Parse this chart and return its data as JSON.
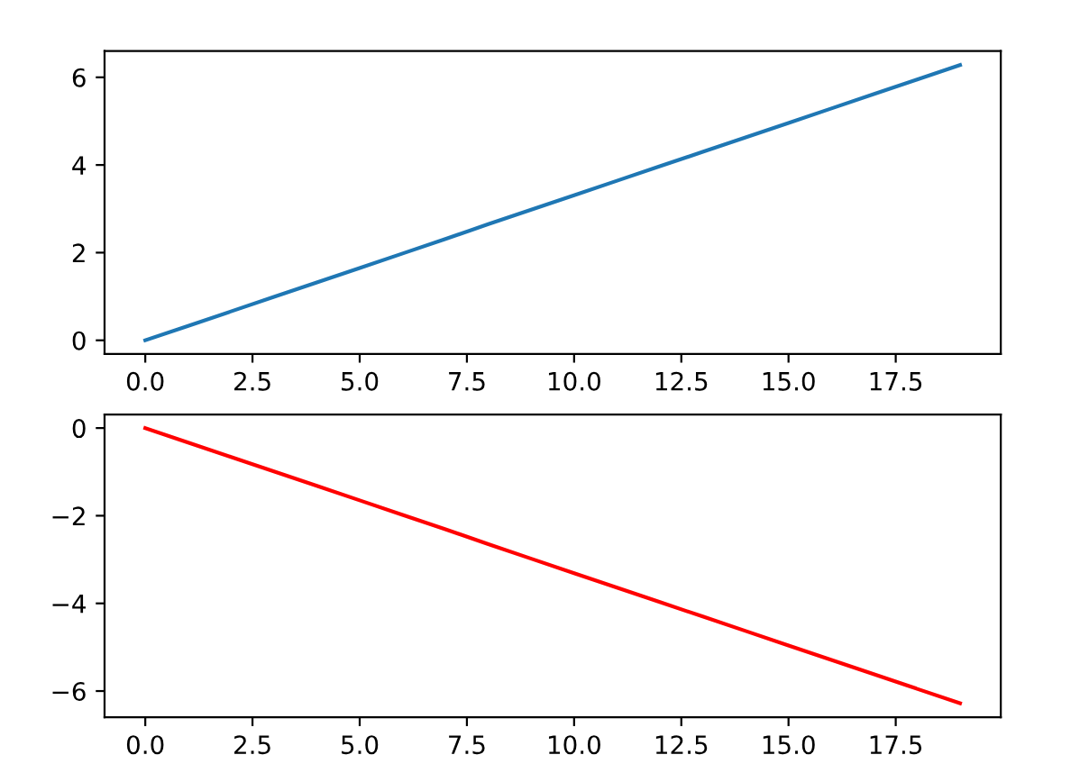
{
  "chart_data": [
    {
      "type": "line",
      "x": [
        0,
        1,
        2,
        3,
        4,
        5,
        6,
        7,
        8,
        9,
        10,
        11,
        12,
        13,
        14,
        15,
        16,
        17,
        18,
        19
      ],
      "series": [
        {
          "color": "#1f77b4",
          "values": [
            0,
            0.33,
            0.66,
            0.99,
            1.32,
            1.65,
            1.98,
            2.31,
            2.65,
            2.98,
            3.31,
            3.64,
            3.97,
            4.3,
            4.63,
            4.96,
            5.29,
            5.62,
            5.95,
            6.28
          ]
        }
      ],
      "xlim": [
        -0.95,
        19.95
      ],
      "ylim": [
        -0.31,
        6.6
      ],
      "xticks": [
        {
          "value": 0,
          "label": "0.0"
        },
        2.5,
        {
          "value": 5,
          "label": "5.0"
        },
        7.5,
        {
          "value": 10,
          "label": "10.0"
        },
        12.5,
        {
          "value": 15,
          "label": "15.0"
        },
        17.5
      ],
      "yticks": [
        0,
        2,
        4,
        6
      ],
      "grid": false,
      "legend": false
    },
    {
      "type": "line",
      "x": [
        0,
        1,
        2,
        3,
        4,
        5,
        6,
        7,
        8,
        9,
        10,
        11,
        12,
        13,
        14,
        15,
        16,
        17,
        18,
        19
      ],
      "series": [
        {
          "color": "#ff0000",
          "values": [
            0,
            -0.33,
            -0.66,
            -0.99,
            -1.32,
            -1.65,
            -1.98,
            -2.31,
            -2.65,
            -2.98,
            -3.31,
            -3.64,
            -3.97,
            -4.3,
            -4.63,
            -4.96,
            -5.29,
            -5.62,
            -5.95,
            -6.28
          ]
        }
      ],
      "xlim": [
        -0.95,
        19.95
      ],
      "ylim": [
        -6.6,
        0.31
      ],
      "xticks": [
        {
          "value": 0,
          "label": "0.0"
        },
        2.5,
        {
          "value": 5,
          "label": "5.0"
        },
        7.5,
        {
          "value": 10,
          "label": "10.0"
        },
        12.5,
        {
          "value": 15,
          "label": "15.0"
        },
        17.5
      ],
      "yticks": [
        {
          "value": -6,
          "label": "−6"
        },
        {
          "value": -4,
          "label": "−4"
        },
        {
          "value": -2,
          "label": "−2"
        },
        0
      ],
      "grid": false,
      "legend": false
    }
  ]
}
